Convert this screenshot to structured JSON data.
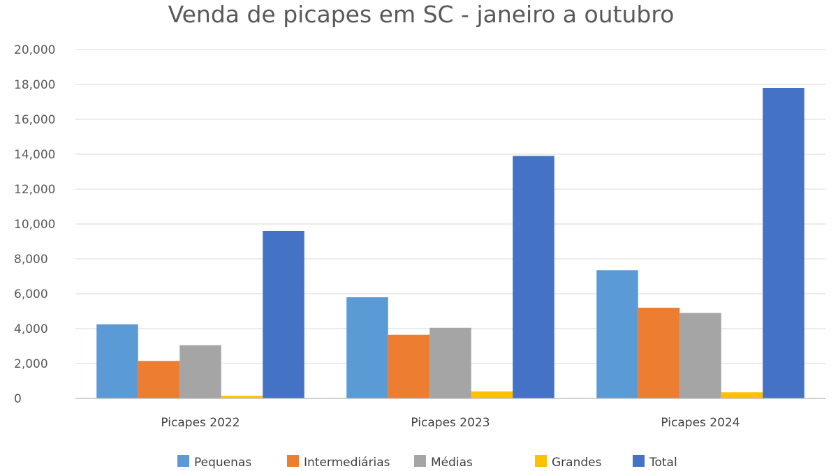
{
  "chart_data": {
    "type": "bar",
    "title": "Venda de picapes em SC - janeiro a outubro",
    "xlabel": "",
    "ylabel": "",
    "categories": [
      "Picapes 2022",
      "Picapes  2023",
      "Picapes 2024"
    ],
    "ylim": [
      0,
      20000
    ],
    "yticks": [
      0,
      2000,
      4000,
      6000,
      8000,
      10000,
      12000,
      14000,
      16000,
      18000,
      20000
    ],
    "ytick_labels": [
      "0",
      "2,000",
      "4,000",
      "6,000",
      "8,000",
      "10,000",
      "12,000",
      "14,000",
      "16,000",
      "18,000",
      "20,000"
    ],
    "grid": true,
    "legend_position": "bottom",
    "series": [
      {
        "name": "Pequenas",
        "color": "#5B9BD5",
        "values": [
          4250,
          5800,
          7350
        ]
      },
      {
        "name": "Intermediárias",
        "color": "#ED7D31",
        "values": [
          2150,
          3650,
          5200
        ]
      },
      {
        "name": "Médias",
        "color": "#A5A5A5",
        "values": [
          3050,
          4050,
          4900
        ]
      },
      {
        "name": "Grandes",
        "color": "#FFC000",
        "values": [
          150,
          400,
          350
        ]
      },
      {
        "name": "Total",
        "color": "#4472C4",
        "values": [
          9600,
          13900,
          17800
        ]
      }
    ]
  }
}
